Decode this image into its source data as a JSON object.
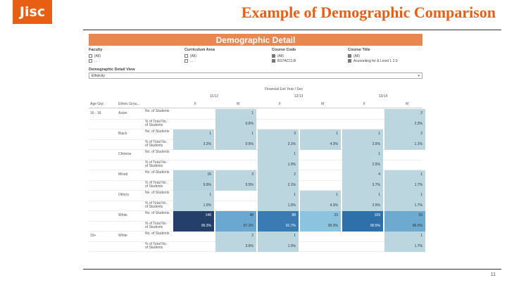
{
  "logo": "Jisc",
  "slide_title": "Example of Demographic Comparison",
  "page_number": "11",
  "dashboard": {
    "header": "Demographic Detail",
    "filters": {
      "faculty": {
        "label": "Faculty",
        "options": [
          {
            "text": "(All)",
            "checked": false
          },
          {
            "text": "...",
            "checked": false
          }
        ]
      },
      "curriculum_area": {
        "label": "Curriculum Area",
        "options": [
          {
            "text": "(All)",
            "checked": false
          },
          {
            "text": "...",
            "checked": false
          }
        ]
      },
      "course_code": {
        "label": "Course Code",
        "options": [
          {
            "text": "(All)",
            "checked": true
          },
          {
            "text": "BS7ACCLB",
            "checked": true
          }
        ]
      },
      "course_title": {
        "label": "Course Title",
        "options": [
          {
            "text": "(All)",
            "checked": true
          },
          {
            "text": "Accounting for & Level 1 2.0",
            "checked": true
          }
        ]
      }
    },
    "demographic_view": {
      "label": "Demographic Detail View",
      "value": "Ethnicity"
    },
    "measure_title": "Financial Exit Year / Sex",
    "row_headers": {
      "age": "Age Grp",
      "ethnic": "Ethnic Grou..."
    },
    "years": [
      "11/12",
      "12/13",
      "13/14"
    ],
    "sex_labels": [
      "F",
      "M",
      "F",
      "M",
      "F",
      "M"
    ],
    "measure_labels": {
      "count": "No. of Students",
      "pct": "% of Total No. of Students"
    },
    "groups": [
      {
        "age": "16 - 18",
        "ethnicity": "Asian"
      },
      {
        "age": "",
        "ethnicity": "Black"
      },
      {
        "age": "",
        "ethnicity": "Chinese"
      },
      {
        "age": "",
        "ethnicity": "Mixed"
      },
      {
        "age": "",
        "ethnicity": "Others"
      },
      {
        "age": "",
        "ethnicity": "White"
      },
      {
        "age": "19+",
        "ethnicity": "White"
      }
    ],
    "cells": [
      [
        [
          "",
          "1",
          "",
          "",
          "",
          "2"
        ],
        [
          "",
          "0.6%",
          "",
          "",
          "",
          "2.3%"
        ]
      ],
      [
        [
          "1",
          "1",
          "3",
          "1",
          "1",
          "2"
        ],
        [
          "3.2%",
          "0.5%",
          "3.1%",
          "4.3%",
          "2.6%",
          "1.1%"
        ]
      ],
      [
        [
          "",
          "",
          "1",
          "",
          "1",
          ""
        ],
        [
          "",
          "",
          "1.0%",
          "",
          "2.5%",
          ""
        ]
      ],
      [
        [
          "16",
          "3",
          "2",
          "",
          "4",
          "1"
        ],
        [
          "9.9%",
          "5.5%",
          "2.1%",
          "",
          "3.7%",
          "1.7%"
        ]
      ],
      [
        [
          "1",
          "",
          "1",
          "1",
          "1",
          "1"
        ],
        [
          "1.0%",
          "",
          "1.0%",
          "4.3%",
          "2.5%",
          "1.7%"
        ]
      ],
      [
        [
          "146",
          "48",
          "88",
          "23",
          "109",
          "53"
        ],
        [
          "90.3%",
          "87.3%",
          "91.7%",
          "90.3%",
          "90.5%",
          "86.5%"
        ]
      ],
      [
        [
          "",
          "2",
          "1",
          "",
          "",
          "1"
        ],
        [
          "",
          "3.6%",
          "1.0%",
          "",
          "",
          "1.7%"
        ]
      ]
    ],
    "colors": {
      "accent": "#e85e13",
      "header_bar": "#e8874f",
      "cells": [
        [
          [
            "",
            "#bcd6df",
            "",
            "",
            "",
            "#bcd6df"
          ],
          [
            "",
            "#bcd6df",
            "",
            "",
            "",
            "#bcd6df"
          ]
        ],
        [
          [
            "#bcd6df",
            "#bcd6df",
            "#bcd6df",
            "#bcd6df",
            "#bcd6df",
            "#bcd6df"
          ],
          [
            "#bcd6df",
            "#bcd6df",
            "#bcd6df",
            "#bcd6df",
            "#bcd6df",
            "#bcd6df"
          ]
        ],
        [
          [
            "",
            "",
            "#bcd6df",
            "",
            "#bcd6df",
            ""
          ],
          [
            "",
            "",
            "#bcd6df",
            "",
            "#bcd6df",
            ""
          ]
        ],
        [
          [
            "#b7d3de",
            "#bcd6df",
            "#bcd6df",
            "",
            "#bcd6df",
            "#bcd6df"
          ],
          [
            "#b7d3de",
            "#bcd6df",
            "#bcd6df",
            "",
            "#bcd6df",
            "#bcd6df"
          ]
        ],
        [
          [
            "#bcd6df",
            "",
            "#bcd6df",
            "#bcd6df",
            "#bcd6df",
            "#bcd6df"
          ],
          [
            "#bcd6df",
            "",
            "#bcd6df",
            "#bcd6df",
            "#bcd6df",
            "#bcd6df"
          ]
        ],
        [
          [
            "#243f6a",
            "#6aa8d2",
            "#3a7bb3",
            "#8cc3de",
            "#2f6faa",
            "#6ea9cf"
          ],
          [
            "#243f6a",
            "#6aa8d2",
            "#3a7bb3",
            "#8cc3de",
            "#2f6faa",
            "#6ea9cf"
          ]
        ],
        [
          [
            "",
            "#bcd6df",
            "#bcd6df",
            "",
            "",
            "#bcd6df"
          ],
          [
            "",
            "#bcd6df",
            "#bcd6df",
            "",
            "",
            "#bcd6df"
          ]
        ]
      ]
    }
  }
}
